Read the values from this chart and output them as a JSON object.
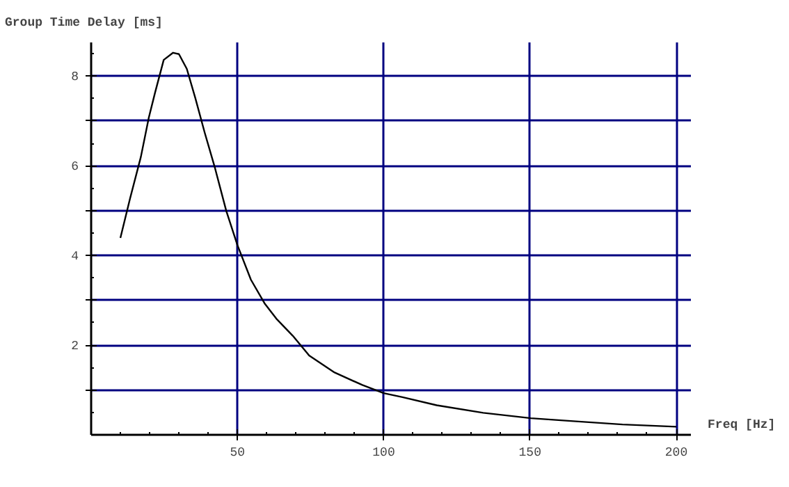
{
  "chart_data": {
    "type": "line",
    "title": "Group Time Delay [ms]",
    "xlabel": "Freq [Hz]",
    "x": [
      10,
      13.3,
      17,
      19.7,
      21.8,
      24.8,
      28,
      30,
      32.7,
      35.6,
      38.8,
      42.2,
      46.2,
      50,
      54.6,
      59.4,
      63.3,
      68.9,
      74.5,
      83.2,
      92.7,
      100,
      106.4,
      118.1,
      134,
      150.3,
      165.7,
      181.6,
      200
    ],
    "series": [
      {
        "color": "#000000",
        "values": [
          4.39,
          5.27,
          6.2,
          7.07,
          7.62,
          8.36,
          8.52,
          8.49,
          8.16,
          7.51,
          6.74,
          5.98,
          4.99,
          4.23,
          3.46,
          2.92,
          2.59,
          2.21,
          1.77,
          1.39,
          1.11,
          0.93,
          0.84,
          0.66,
          0.49,
          0.37,
          0.3,
          0.23,
          0.18
        ]
      }
    ],
    "xlim": [
      0,
      205
    ],
    "ylim": [
      0,
      8.75
    ],
    "xticks": [
      50,
      100,
      150,
      200
    ],
    "yticks": [
      {
        "value": 1,
        "label": null
      },
      2,
      {
        "value": 3,
        "label": null
      },
      4,
      {
        "value": 5,
        "label": null
      },
      6,
      {
        "value": 7,
        "label": null
      },
      8
    ],
    "grid": true,
    "marker": "none",
    "line_style": "solid"
  }
}
